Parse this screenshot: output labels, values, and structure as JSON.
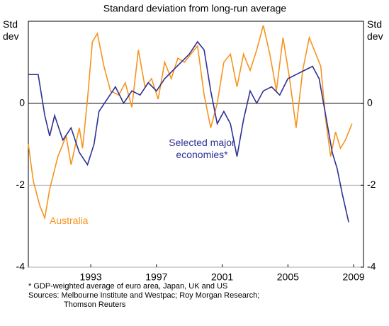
{
  "chart_data": {
    "type": "line",
    "title": "Standard deviation from long-run average",
    "ylabel": "Std dev",
    "y2label": "Std dev",
    "xlim": [
      1989.7,
      2010.1
    ],
    "xticks": [
      {
        "value": 1993.5,
        "label": "1993"
      },
      {
        "value": 1997.5,
        "label": "1997"
      },
      {
        "value": 2001.5,
        "label": "2001"
      },
      {
        "value": 2005.5,
        "label": "2005"
      },
      {
        "value": 2009.5,
        "label": "2009"
      }
    ],
    "ylim": [
      -4,
      2
    ],
    "yticks": [
      -4,
      -2,
      0
    ],
    "y2lim": [
      -4,
      2
    ],
    "y2ticks": [
      -4,
      -2,
      0
    ],
    "grid": true,
    "series": [
      {
        "name": "Australia",
        "color": "#f7941d",
        "x": [
          1989.7,
          1990.0,
          1990.4,
          1990.7,
          1991.0,
          1991.5,
          1992.0,
          1992.3,
          1992.8,
          1993.0,
          1993.3,
          1993.6,
          1993.9,
          1994.3,
          1994.7,
          1995.2,
          1995.6,
          1996.0,
          1996.4,
          1996.8,
          1997.2,
          1997.6,
          1998.0,
          1998.4,
          1998.8,
          1999.2,
          1999.6,
          2000.0,
          2000.4,
          2000.8,
          2001.2,
          2001.6,
          2002.0,
          2002.4,
          2002.8,
          2003.2,
          2003.6,
          2004.0,
          2004.4,
          2004.8,
          2005.2,
          2005.6,
          2006.0,
          2006.4,
          2006.8,
          2007.2,
          2007.5,
          2007.8,
          2008.1,
          2008.4,
          2008.7,
          2009.0,
          2009.4
        ],
        "values": [
          -1.0,
          -1.9,
          -2.5,
          -2.8,
          -2.1,
          -1.3,
          -0.8,
          -1.5,
          -0.6,
          -1.1,
          0.1,
          1.5,
          1.7,
          0.9,
          0.3,
          0.2,
          0.5,
          -0.1,
          1.3,
          0.4,
          0.6,
          0.1,
          1.0,
          0.6,
          1.1,
          1.0,
          1.2,
          1.4,
          0.2,
          -0.6,
          0.0,
          1.0,
          1.2,
          0.4,
          1.2,
          0.8,
          1.3,
          1.9,
          1.2,
          0.3,
          1.6,
          0.6,
          -0.6,
          0.8,
          1.6,
          1.2,
          0.9,
          -0.4,
          -1.3,
          -0.7,
          -1.1,
          -0.9,
          -0.5
        ]
      },
      {
        "name": "Selected major economies*",
        "color": "#2e3192",
        "x": [
          1989.7,
          1990.3,
          1990.7,
          1991.0,
          1991.3,
          1991.8,
          1992.3,
          1992.8,
          1993.3,
          1993.7,
          1994.0,
          1994.5,
          1995.0,
          1995.5,
          1996.0,
          1996.5,
          1997.0,
          1997.5,
          1998.0,
          1998.5,
          1999.0,
          1999.5,
          2000.0,
          2000.4,
          2000.8,
          2001.2,
          2001.6,
          2002.0,
          2002.4,
          2002.8,
          2003.2,
          2003.6,
          2004.0,
          2004.5,
          2005.0,
          2005.5,
          2006.0,
          2006.5,
          2007.0,
          2007.4,
          2007.8,
          2008.2,
          2008.5,
          2008.8,
          2009.2
        ],
        "values": [
          0.7,
          0.7,
          -0.3,
          -0.8,
          -0.3,
          -0.9,
          -0.6,
          -1.2,
          -1.5,
          -1.0,
          -0.2,
          0.1,
          0.4,
          0.0,
          0.3,
          0.2,
          0.5,
          0.3,
          0.6,
          0.8,
          1.0,
          1.2,
          1.5,
          1.3,
          0.3,
          -0.5,
          -0.2,
          -0.5,
          -1.3,
          -0.4,
          0.3,
          0.0,
          0.3,
          0.4,
          0.2,
          0.6,
          0.7,
          0.8,
          0.9,
          0.6,
          -0.3,
          -1.2,
          -1.6,
          -2.2,
          -2.9
        ]
      }
    ],
    "footnotes": [
      "*   GDP-weighted average of euro area, Japan, UK and US",
      "Sources: Melbourne Institute and Westpac; Roy Morgan Research;",
      "Thomson Reuters"
    ]
  }
}
